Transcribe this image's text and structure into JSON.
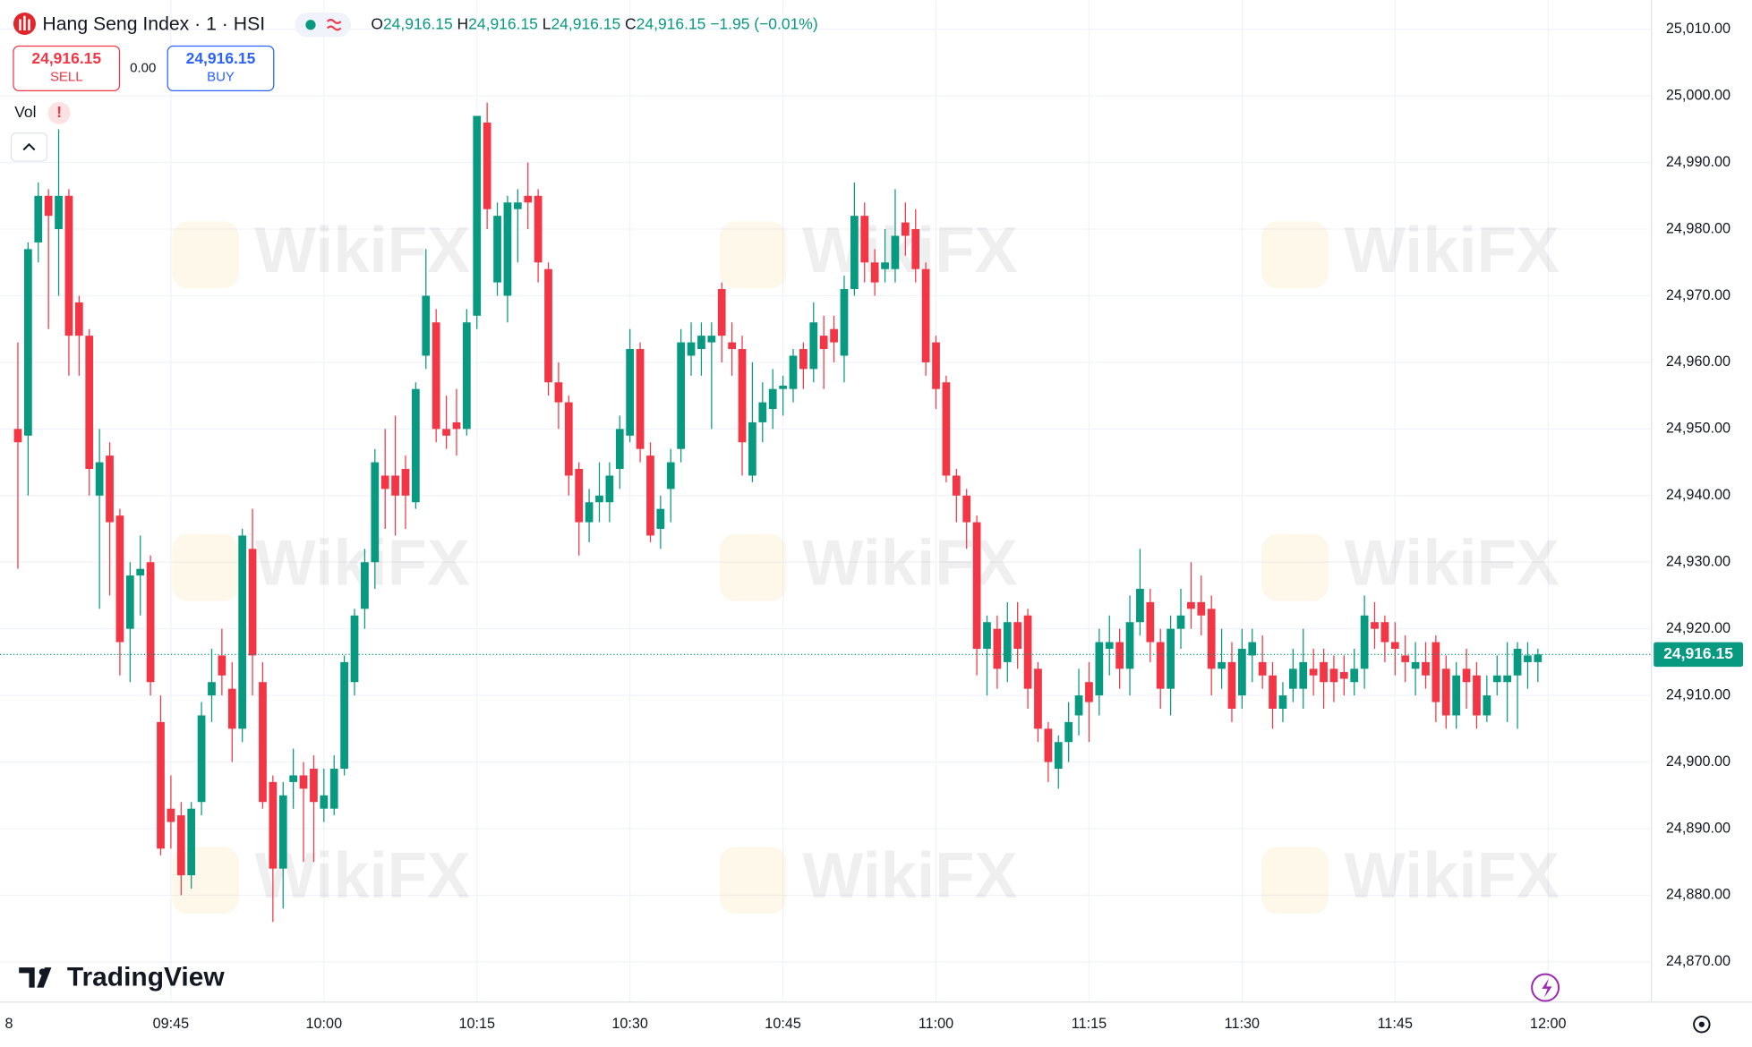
{
  "header": {
    "symbol": "Hang Seng Index · 1 · HSI",
    "ohlc": [
      {
        "key": "O",
        "value": "24,916.15"
      },
      {
        "key": "H",
        "value": "24,916.15"
      },
      {
        "key": "L",
        "value": "24,916.15"
      },
      {
        "key": "C",
        "value": "24,916.15"
      }
    ],
    "change": "−1.95 (−0.01%)"
  },
  "trade": {
    "sell_price": "24,916.15",
    "sell": "SELL",
    "spread": "0.00",
    "buy_price": "24,916.15",
    "buy": "BUY"
  },
  "indicator": {
    "name": "Vol",
    "alert": "!"
  },
  "watermark": "WikiFX",
  "logo": "TradingView",
  "last_price_label": "24,916.15",
  "x_edge_label": "8",
  "chart_data": {
    "type": "candlestick",
    "up_color": "#089981",
    "down_color": "#f23645",
    "grid": true,
    "categories": [
      "09:30",
      "09:31",
      "09:32",
      "09:33",
      "09:34",
      "09:35",
      "09:36",
      "09:37",
      "09:38",
      "09:39",
      "09:40",
      "09:41",
      "09:42",
      "09:43",
      "09:44",
      "09:45",
      "09:46",
      "09:47",
      "09:48",
      "09:49",
      "09:50",
      "09:51",
      "09:52",
      "09:53",
      "09:54",
      "09:55",
      "09:56",
      "09:57",
      "09:58",
      "09:59",
      "10:00",
      "10:01",
      "10:02",
      "10:03",
      "10:04",
      "10:05",
      "10:06",
      "10:07",
      "10:08",
      "10:09",
      "10:10",
      "10:11",
      "10:12",
      "10:13",
      "10:14",
      "10:15",
      "10:16",
      "10:17",
      "10:18",
      "10:19",
      "10:20",
      "10:21",
      "10:22",
      "10:23",
      "10:24",
      "10:25",
      "10:26",
      "10:27",
      "10:28",
      "10:29",
      "10:30",
      "10:31",
      "10:32",
      "10:33",
      "10:34",
      "10:35",
      "10:36",
      "10:37",
      "10:38",
      "10:39",
      "10:40",
      "10:41",
      "10:42",
      "10:43",
      "10:44",
      "10:45",
      "10:46",
      "10:47",
      "10:48",
      "10:49",
      "10:50",
      "10:51",
      "10:52",
      "10:53",
      "10:54",
      "10:55",
      "10:56",
      "10:57",
      "10:58",
      "10:59",
      "11:00",
      "11:01",
      "11:02",
      "11:03",
      "11:04",
      "11:05",
      "11:06",
      "11:07",
      "11:08",
      "11:09",
      "11:10",
      "11:11",
      "11:12",
      "11:13",
      "11:14",
      "11:15",
      "11:16",
      "11:17",
      "11:18",
      "11:19",
      "11:20",
      "11:21",
      "11:22",
      "11:23",
      "11:24",
      "11:25",
      "11:26",
      "11:27",
      "11:28",
      "11:29",
      "11:30",
      "11:31",
      "11:32",
      "11:33",
      "11:34",
      "11:35",
      "11:36",
      "11:37",
      "11:38",
      "11:39",
      "11:40",
      "11:41",
      "11:42",
      "11:43",
      "11:44",
      "11:45",
      "11:46",
      "11:47",
      "11:48",
      "11:49",
      "11:50",
      "11:51",
      "11:52",
      "11:53",
      "11:54",
      "11:55",
      "11:56",
      "11:57",
      "11:58",
      "11:59"
    ],
    "open": [
      24950,
      24949,
      24978,
      24985,
      24980,
      24985,
      24969,
      24964,
      24940,
      24946,
      24937,
      24920,
      24928,
      24930,
      24906,
      24893,
      24892,
      24883,
      24894,
      24910,
      24916,
      24911,
      24905,
      24932,
      24912,
      24897,
      24884,
      24897,
      24898,
      24899,
      24893,
      24893,
      24899,
      24912,
      24923,
      24930,
      24943,
      24943,
      24944,
      24939,
      24961,
      24966,
      24950,
      24951,
      24950,
      24967,
      24996,
      24972,
      24970,
      24983,
      24985,
      24985,
      24974,
      24957,
      24954,
      24944,
      24936,
      24939,
      24939,
      24944,
      24949,
      24962,
      24946,
      24935,
      24941,
      24947,
      24961,
      24962,
      24963,
      24971,
      24963,
      24962,
      24943,
      24951,
      24953,
      24956,
      24956,
      24962,
      24959,
      24964,
      24965,
      24961,
      24971,
      24982,
      24975,
      24974,
      24974,
      24981,
      24980,
      24974,
      24963,
      24957,
      24943,
      24940,
      24936,
      24917,
      24920,
      24915,
      24921,
      24922,
      24914,
      24905,
      24899,
      24903,
      24907,
      24912,
      24910,
      24917,
      24918,
      24914,
      24921,
      24924,
      24918,
      24911,
      24920,
      24924,
      24924,
      24923,
      24914,
      24915,
      24910,
      24916,
      24915,
      24913,
      24908,
      24911,
      24911,
      24914,
      24915,
      24914,
      24913.5,
      24912,
      24914,
      24921,
      24921,
      24918,
      24916,
      24914,
      24915,
      24918,
      24914,
      24907,
      24914,
      24913,
      24907,
      24912,
      24912,
      24913,
      24915,
      24915
    ],
    "high": [
      24963,
      24978,
      24987,
      24986,
      24995,
      24986,
      24970,
      24965,
      24950,
      24948,
      24938,
      24930,
      24934,
      24931,
      24910,
      24898,
      24894,
      24894,
      24909,
      24917,
      24920,
      24915,
      24935,
      24938,
      24915,
      24898,
      24897,
      24902,
      24900,
      24901,
      24899,
      24901,
      24916,
      24923,
      24932,
      24947,
      24950,
      24952,
      24946,
      24957,
      24977,
      24968,
      24955,
      24956,
      24968,
      24997,
      24999,
      24984,
      24985,
      24986,
      24990,
      24986,
      24975,
      24960,
      24955,
      24945,
      24941,
      24945,
      24945,
      24952,
      24965,
      24963,
      24948,
      24940,
      24947,
      24965,
      24966,
      24966,
      24966,
      24972,
      24966,
      24964,
      24960,
      24957,
      24959,
      24958,
      24962,
      24963,
      24969,
      24967,
      24967,
      24973,
      24987,
      24984,
      24977,
      24980,
      24986,
      24984,
      24983,
      24975,
      24964,
      24958,
      24944,
      24941,
      24937,
      24922,
      24922,
      24924,
      24924,
      24923,
      24915,
      24906,
      24904,
      24909,
      24914,
      24915,
      24920,
      24922,
      24920,
      24925,
      24932,
      24926,
      24920,
      24922,
      24926,
      24930,
      24928,
      24925,
      24920,
      24918,
      24920,
      24920,
      24919,
      24915,
      24912,
      24917,
      24920,
      24917,
      24917,
      24916,
      24916,
      24917,
      24925,
      24924,
      24922,
      24921,
      24919,
      24918,
      24918,
      24919,
      24916,
      24915,
      24917,
      24915,
      24913,
      24916,
      24918,
      24918,
      24918,
      24917
    ],
    "low": [
      24929,
      24940,
      24975,
      24965,
      24970,
      24958,
      24958,
      24940,
      24923,
      24925,
      24913,
      24912,
      24922,
      24910,
      24886,
      24887,
      24880,
      24881,
      24892,
      24906,
      24910,
      24900,
      24903,
      24910,
      24893,
      24876,
      24878,
      24893,
      24885,
      24885,
      24891,
      24892,
      24898,
      24910,
      24920,
      24926,
      24935,
      24934,
      24935,
      24938,
      24959,
      24948,
      24947,
      24946,
      24949,
      24965,
      24980,
      24970,
      24966,
      24975,
      24980,
      24972,
      24955,
      24950,
      24940,
      24931,
      24933,
      24936,
      24936,
      24941,
      24948,
      24945,
      24933,
      24932,
      24936,
      24945,
      24958,
      24958,
      24950,
      24960,
      24958,
      24943,
      24942,
      24948,
      24950,
      24952,
      24954,
      24956,
      24957,
      24956,
      24960,
      24957,
      24970,
      24972,
      24970,
      24972,
      24972,
      24976,
      24972,
      24958,
      24953,
      24942,
      24936,
      24932,
      24913,
      24910,
      24911,
      24912,
      24914,
      24908,
      24903,
      24897,
      24896,
      24900,
      24904,
      24903,
      24907,
      24913,
      24911,
      24910,
      24919,
      24915,
      24908,
      24907,
      24917,
      24920,
      24919,
      24910,
      24911,
      24906,
      24908,
      24912,
      24911,
      24905,
      24906,
      24909,
      24908,
      24910,
      24908,
      24909,
      24910,
      24910,
      24911,
      24917,
      24915,
      24913,
      24912,
      24910,
      24911,
      24906,
      24905,
      24905,
      24908,
      24905,
      24906,
      24910,
      24906,
      24905,
      24911,
      24912
    ],
    "close": [
      24948,
      24977,
      24985,
      24982,
      24985,
      24964,
      24964,
      24944,
      24945,
      24936,
      24918,
      24928,
      24929,
      24912,
      24887,
      24891,
      24883,
      24893,
      24907,
      24912,
      24913,
      24905,
      24934,
      24916,
      24894,
      24884,
      24895,
      24898,
      24896,
      24894,
      24895,
      24899,
      24915,
      24922,
      24930,
      24945,
      24941,
      24940,
      24940,
      24956,
      24970,
      24950,
      24949,
      24950,
      24966,
      24997,
      24983,
      24982,
      24984,
      24984,
      24984,
      24975,
      24957,
      24954,
      24943,
      24936,
      24939,
      24940,
      24943,
      24950,
      24962,
      24947,
      24934,
      24938,
      24945,
      24963,
      24963,
      24964,
      24964,
      24964,
      24962,
      24948,
      24951,
      24954,
      24956,
      24956.5,
      24961,
      24959,
      24966,
      24962,
      24963,
      24971,
      24982,
      24975,
      24972,
      24975,
      24979,
      24979,
      24974,
      24960,
      24956,
      24943,
      24940,
      24936,
      24917,
      24921,
      24914,
      24921,
      24917,
      24911,
      24905,
      24900,
      24903,
      24906,
      24910,
      24909,
      24918,
      24918,
      24914,
      24921,
      24926,
      24918,
      24911,
      24920,
      24922,
      24923,
      24922,
      24914,
      24915,
      24908,
      24917,
      24918,
      24913,
      24908,
      24910,
      24914,
      24915,
      24913,
      24912,
      24912,
      24912.5,
      24914,
      24922,
      24920,
      24918,
      24917,
      24915,
      24915,
      24913,
      24909,
      24907,
      24913,
      24912,
      24907,
      24910,
      24913,
      24913,
      24917,
      24916,
      24916.15
    ],
    "xtick_labels": [
      "09:45",
      "10:00",
      "10:15",
      "10:30",
      "10:45",
      "11:00",
      "11:15",
      "11:30",
      "11:45",
      "12:00"
    ],
    "ylim": [
      24870,
      25010
    ],
    "yticks": [
      {
        "value": 24870,
        "label": "24,870.00"
      },
      {
        "value": 24880,
        "label": "24,880.00"
      },
      {
        "value": 24890,
        "label": "24,890.00"
      },
      {
        "value": 24900,
        "label": "24,900.00"
      },
      {
        "value": 24910,
        "label": "24,910.00"
      },
      {
        "value": 24920,
        "label": "24,920.00"
      },
      {
        "value": 24930,
        "label": "24,930.00"
      },
      {
        "value": 24940,
        "label": "24,940.00"
      },
      {
        "value": 24950,
        "label": "24,950.00"
      },
      {
        "value": 24960,
        "label": "24,960.00"
      },
      {
        "value": 24970,
        "label": "24,970.00"
      },
      {
        "value": 24980,
        "label": "24,980.00"
      },
      {
        "value": 24990,
        "label": "24,990.00"
      },
      {
        "value": 25000,
        "label": "25,000.00"
      },
      {
        "value": 25010,
        "label": "25,010.00"
      }
    ]
  }
}
